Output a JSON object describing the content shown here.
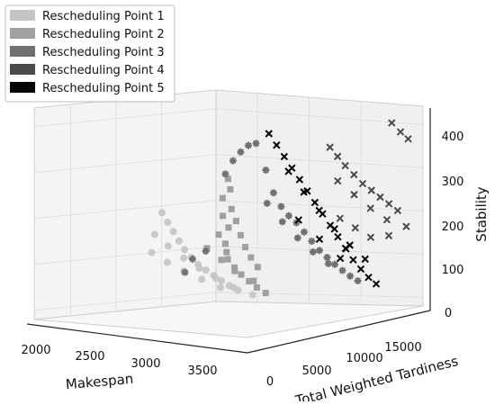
{
  "chart_data": {
    "type": "scatter",
    "projection": "3d",
    "xlabel": "Makespan",
    "ylabel": "Total Weighted Tardiness",
    "zlabel": "Stability",
    "xlim": [
      1800,
      3800
    ],
    "ylim": [
      0,
      17000
    ],
    "zlim": [
      -20,
      440
    ],
    "x_ticks": [
      "2000",
      "2500",
      "3000",
      "3500"
    ],
    "y_ticks": [
      "0",
      "5000",
      "10000",
      "15000"
    ],
    "z_ticks": [
      "0",
      "100",
      "200",
      "300",
      "400"
    ],
    "legend_position": "top-left",
    "grid": true,
    "series": [
      {
        "name": "Rescheduling Point 1",
        "color": "#c4c4c4",
        "marker": "circle",
        "points": [
          [
            2050,
            10000,
            180
          ],
          [
            2150,
            9500,
            165
          ],
          [
            2250,
            9000,
            150
          ],
          [
            2350,
            8500,
            135
          ],
          [
            2450,
            8000,
            122
          ],
          [
            2550,
            7600,
            110
          ],
          [
            2650,
            7200,
            100
          ],
          [
            2750,
            6900,
            92
          ],
          [
            2850,
            6600,
            85
          ],
          [
            2950,
            6300,
            78
          ],
          [
            3050,
            6000,
            72
          ],
          [
            3150,
            5800,
            66
          ],
          [
            2100,
            8800,
            140
          ],
          [
            2300,
            8000,
            125
          ],
          [
            2500,
            7400,
            108
          ],
          [
            2700,
            6800,
            95
          ],
          [
            2900,
            6300,
            82
          ],
          [
            3100,
            5900,
            70
          ],
          [
            3300,
            5600,
            62
          ],
          [
            2200,
            7500,
            110
          ],
          [
            2400,
            6900,
            98
          ],
          [
            2600,
            6400,
            88
          ],
          [
            2800,
            6000,
            78
          ],
          [
            3000,
            5700,
            68
          ]
        ]
      },
      {
        "name": "Rescheduling Point 2",
        "color": "#a0a0a0",
        "marker": "square",
        "points": [
          [
            2600,
            10500,
            270
          ],
          [
            2650,
            10200,
            250
          ],
          [
            2600,
            10000,
            230
          ],
          [
            2700,
            9800,
            210
          ],
          [
            2650,
            9500,
            195
          ],
          [
            2750,
            9000,
            175
          ],
          [
            2700,
            8600,
            160
          ],
          [
            2800,
            8200,
            145
          ],
          [
            2850,
            7800,
            130
          ],
          [
            2900,
            7400,
            118
          ],
          [
            3000,
            7000,
            105
          ],
          [
            3100,
            6600,
            95
          ],
          [
            3200,
            6300,
            85
          ],
          [
            3300,
            6000,
            76
          ],
          [
            3400,
            5800,
            68
          ],
          [
            2800,
            9200,
            190
          ],
          [
            2900,
            8600,
            165
          ],
          [
            3000,
            8000,
            145
          ],
          [
            3100,
            7500,
            128
          ],
          [
            3200,
            7100,
            112
          ],
          [
            2750,
            7000,
            140
          ],
          [
            2900,
            6800,
            120
          ],
          [
            3050,
            6500,
            102
          ],
          [
            3250,
            6200,
            88
          ]
        ]
      },
      {
        "name": "Rescheduling Point 3",
        "color": "#707070",
        "marker": "star",
        "points": [
          [
            2550,
            7000,
            80
          ],
          [
            2600,
            7200,
            110
          ],
          [
            2700,
            7400,
            130
          ],
          [
            2800,
            8200,
            300
          ],
          [
            2850,
            8400,
            330
          ],
          [
            2900,
            8600,
            350
          ],
          [
            2950,
            8800,
            365
          ],
          [
            3000,
            9000,
            370
          ],
          [
            3050,
            9400,
            310
          ],
          [
            3100,
            9600,
            260
          ],
          [
            3150,
            9800,
            230
          ],
          [
            3200,
            10000,
            210
          ],
          [
            3250,
            10200,
            195
          ],
          [
            3300,
            10400,
            175
          ],
          [
            3350,
            10600,
            155
          ],
          [
            3400,
            10800,
            135
          ],
          [
            3450,
            11000,
            120
          ],
          [
            3500,
            11200,
            105
          ],
          [
            3550,
            11400,
            92
          ],
          [
            3600,
            11600,
            80
          ],
          [
            3650,
            11800,
            70
          ],
          [
            3100,
            9000,
            240
          ],
          [
            3200,
            9400,
            200
          ],
          [
            3300,
            9800,
            165
          ],
          [
            3400,
            10200,
            135
          ],
          [
            3500,
            10600,
            110
          ]
        ]
      },
      {
        "name": "Rescheduling Point 4",
        "color": "#4a4a4a",
        "marker": "cross",
        "points": [
          [
            3300,
            12800,
            350
          ],
          [
            3350,
            13000,
            330
          ],
          [
            3400,
            13200,
            310
          ],
          [
            3450,
            13500,
            290
          ],
          [
            3500,
            13800,
            270
          ],
          [
            3550,
            14100,
            255
          ],
          [
            3600,
            14400,
            240
          ],
          [
            3650,
            14700,
            225
          ],
          [
            3700,
            15000,
            210
          ],
          [
            3400,
            12500,
            280
          ],
          [
            3500,
            13000,
            250
          ],
          [
            3600,
            13500,
            220
          ],
          [
            3700,
            14000,
            195
          ],
          [
            3450,
            12200,
            200
          ],
          [
            3550,
            12600,
            180
          ],
          [
            3650,
            13000,
            160
          ],
          [
            3500,
            16500,
            390
          ],
          [
            3550,
            16800,
            370
          ],
          [
            3600,
            17000,
            355
          ],
          [
            3350,
            13800,
            120
          ],
          [
            3600,
            15200,
            150
          ],
          [
            3700,
            15800,
            170
          ]
        ]
      },
      {
        "name": "Rescheduling Point 5",
        "color": "#050505",
        "marker": "cross",
        "points": [
          [
            3000,
            10200,
            385
          ],
          [
            3050,
            10400,
            360
          ],
          [
            3100,
            10600,
            335
          ],
          [
            3150,
            10800,
            310
          ],
          [
            3200,
            11000,
            285
          ],
          [
            3250,
            11200,
            260
          ],
          [
            3300,
            11400,
            235
          ],
          [
            3350,
            11600,
            210
          ],
          [
            3400,
            11800,
            185
          ],
          [
            3450,
            12000,
            160
          ],
          [
            3500,
            12200,
            135
          ],
          [
            3550,
            12400,
            110
          ],
          [
            3600,
            12600,
            90
          ],
          [
            3650,
            12800,
            72
          ],
          [
            3700,
            13000,
            58
          ],
          [
            3100,
            11000,
            300
          ],
          [
            3200,
            11400,
            255
          ],
          [
            3300,
            11800,
            215
          ],
          [
            3400,
            12200,
            175
          ],
          [
            3500,
            12600,
            140
          ],
          [
            3600,
            13000,
            110
          ],
          [
            3250,
            10400,
            200
          ],
          [
            3400,
            10800,
            160
          ],
          [
            3550,
            11200,
            120
          ]
        ]
      }
    ]
  }
}
